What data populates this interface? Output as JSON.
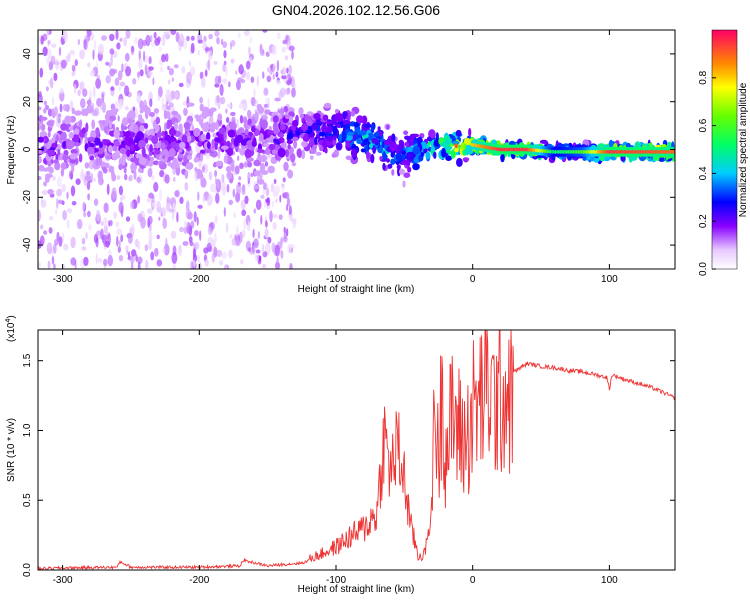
{
  "figure": {
    "title": "GN04.2026.102.12.56.G06"
  },
  "colorbar": {
    "label": "Normalized spectral amplitude",
    "ticks": [
      "0.0",
      "0.2",
      "0.4",
      "0.6",
      "0.8"
    ],
    "range": [
      0.0,
      1.0
    ]
  },
  "chart_data": [
    {
      "type": "heatmap",
      "title": "GN04.2026.102.12.56.G06",
      "xlabel": "Height of straight line (km)",
      "ylabel": "Frequency (Hz)",
      "xlim": [
        -318,
        148
      ],
      "ylim": [
        -50,
        50
      ],
      "xticks": [
        "-300",
        "-200",
        "-100",
        "0",
        "100"
      ],
      "yticks": [
        "-40",
        "-20",
        "0",
        "20",
        "40"
      ],
      "ridge": {
        "description": "dominant energy band",
        "points": [
          [
            -318,
            1
          ],
          [
            -250,
            3
          ],
          [
            -200,
            3
          ],
          [
            -150,
            4
          ],
          [
            -110,
            8
          ],
          [
            -95,
            7
          ],
          [
            -80,
            4
          ],
          [
            -70,
            3
          ],
          [
            -60,
            -2
          ],
          [
            -50,
            -2
          ],
          [
            -40,
            0
          ],
          [
            -30,
            1
          ],
          [
            -20,
            2
          ],
          [
            -10,
            1
          ],
          [
            0,
            2
          ],
          [
            20,
            0
          ],
          [
            40,
            0
          ],
          [
            60,
            -1
          ],
          [
            100,
            -1
          ],
          [
            148,
            -1
          ]
        ],
        "peak_amplitude": [
          [
            -318,
            0.2
          ],
          [
            -150,
            0.2
          ],
          [
            -100,
            0.35
          ],
          [
            -80,
            0.5
          ],
          [
            -50,
            0.35
          ],
          [
            -30,
            0.6
          ],
          [
            -10,
            0.9
          ],
          [
            0,
            0.8
          ],
          [
            20,
            0.95
          ],
          [
            40,
            0.95
          ],
          [
            60,
            0.5
          ],
          [
            80,
            0.6
          ],
          [
            100,
            0.95
          ],
          [
            148,
            0.9
          ]
        ]
      },
      "colorbar_label": "Normalized spectral amplitude"
    },
    {
      "type": "line",
      "xlabel": "Height of straight line (km)",
      "ylabel": "SNR (10 * v/v)",
      "yscale_label": "(x10",
      "yscale_exp": "4",
      "xlim": [
        -318,
        148
      ],
      "ylim": [
        0,
        1.72
      ],
      "xticks": [
        "-300",
        "-200",
        "-100",
        "0",
        "100"
      ],
      "yticks": [
        "0.0",
        "0.5",
        "1.0",
        "1.5"
      ],
      "color": "#ee3333",
      "series": [
        {
          "name": "SNR",
          "x": [
            -318,
            -300,
            -260,
            -258,
            -250,
            -200,
            -170,
            -168,
            -150,
            -125,
            -110,
            -100,
            -90,
            -80,
            -70,
            -65,
            -60,
            -55,
            -50,
            -45,
            -40,
            -35,
            -30,
            -28,
            -25,
            -22,
            -20,
            -15,
            -10,
            -5,
            0,
            5,
            10,
            15,
            20,
            25,
            30,
            35,
            40,
            50,
            60,
            70,
            80,
            90,
            98,
            100,
            102,
            110,
            120,
            130,
            140,
            148
          ],
          "values": [
            0.01,
            0.015,
            0.02,
            0.06,
            0.02,
            0.02,
            0.03,
            0.07,
            0.03,
            0.05,
            0.1,
            0.14,
            0.2,
            0.25,
            0.35,
            0.8,
            0.6,
            0.75,
            0.55,
            0.25,
            0.1,
            0.12,
            0.4,
            1.48,
            0.8,
            1.6,
            0.9,
            1.2,
            1.1,
            1.0,
            1.25,
            1.3,
            1.5,
            1.3,
            1.38,
            1.4,
            1.42,
            1.45,
            1.48,
            1.46,
            1.45,
            1.43,
            1.42,
            1.4,
            1.38,
            1.3,
            1.4,
            1.37,
            1.34,
            1.31,
            1.27,
            1.23
          ]
        }
      ]
    }
  ]
}
